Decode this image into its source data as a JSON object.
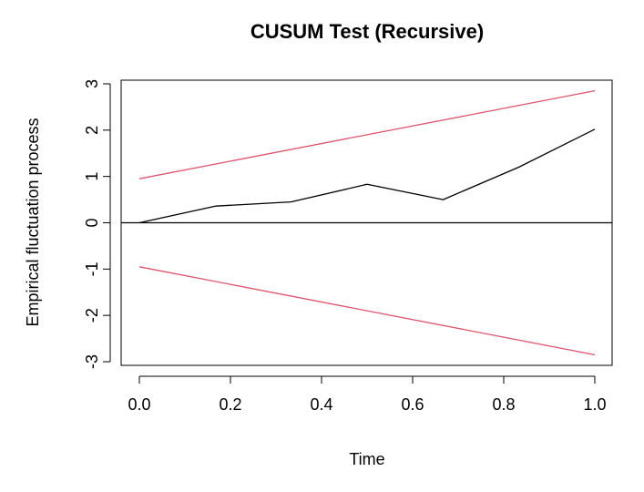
{
  "chart_data": {
    "type": "line",
    "title": "CUSUM Test (Recursive)",
    "xlabel": "Time",
    "ylabel": "Empirical fluctuation process",
    "xlim": [
      0.0,
      1.0
    ],
    "ylim": [
      -3,
      3
    ],
    "x_ticks": [
      "0.0",
      "0.2",
      "0.4",
      "0.6",
      "0.8",
      "1.0"
    ],
    "y_ticks": [
      "-3",
      "-2",
      "-1",
      "0",
      "1",
      "2",
      "3"
    ],
    "grid": false,
    "reference_line": {
      "y": 0,
      "color": "#000000"
    },
    "series": [
      {
        "role": "process",
        "color": "#000000",
        "x": [
          0.0,
          0.167,
          0.333,
          0.5,
          0.667,
          0.833,
          1.0
        ],
        "y": [
          0.0,
          0.36,
          0.45,
          0.83,
          0.5,
          1.2,
          2.02
        ]
      },
      {
        "role": "upper-boundary",
        "color": "#DF536B",
        "x": [
          0.0,
          1.0
        ],
        "y": [
          0.95,
          2.85
        ]
      },
      {
        "role": "lower-boundary",
        "color": "#DF536B",
        "x": [
          0.0,
          1.0
        ],
        "y": [
          -0.95,
          -2.85
        ]
      }
    ]
  }
}
